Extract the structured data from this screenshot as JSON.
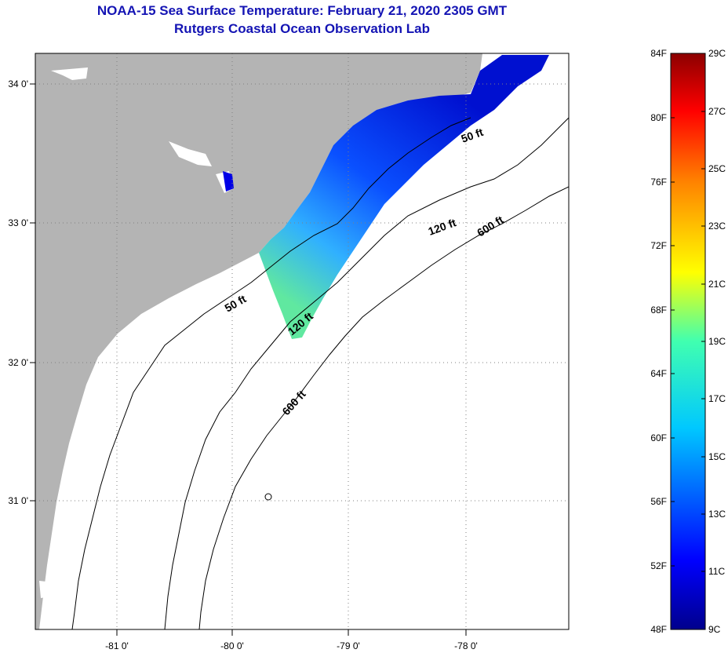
{
  "title": "NOAA-15 Sea Surface Temperature:  February 21, 2020 2305 GMT",
  "subtitle": "Rutgers Coastal Ocean Observation Lab",
  "longitude_ticks": [
    "-81 0'",
    "-80 0'",
    "-79 0'",
    "-78 0'"
  ],
  "latitude_ticks": [
    "34 0'",
    "33 0'",
    "32 0'",
    "31 0'"
  ],
  "isobath_labels": [
    "50 ft",
    "120 ft",
    "600 ft",
    "50 ft",
    "120 ft",
    "600 ft"
  ],
  "colorbar": {
    "fahrenheit": [
      "84F",
      "80F",
      "76F",
      "72F",
      "68F",
      "64F",
      "60F",
      "56F",
      "52F",
      "48F"
    ],
    "celsius": [
      "29C",
      "27C",
      "25C",
      "23C",
      "21C",
      "19C",
      "17C",
      "15C",
      "13C",
      "11C",
      "9C"
    ]
  },
  "colors": {
    "land": "#b4b4b4",
    "title": "#1414b4"
  }
}
